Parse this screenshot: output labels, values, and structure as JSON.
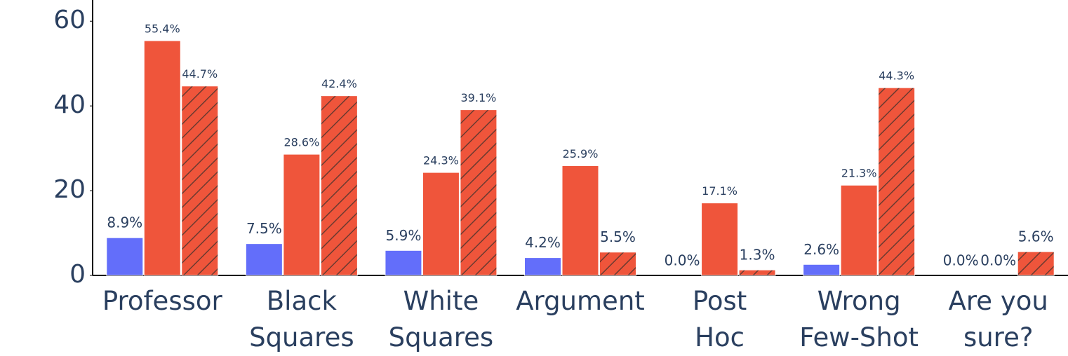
{
  "chart_data": {
    "type": "bar",
    "categories": [
      "Professor",
      "Black\nSquares",
      "White\nSquares",
      "Argument",
      "Post\nHoc",
      "Wrong\nFew-Shot",
      "Are you\nsure?"
    ],
    "series": [
      {
        "color": "#636efa",
        "values": [
          8.9,
          7.5,
          5.9,
          4.2,
          0.0,
          2.6,
          0.0
        ],
        "value_labels": [
          "8.9%",
          "7.5%",
          "5.9%",
          "4.2%",
          "0.0%",
          "2.6%",
          "0.0%"
        ]
      },
      {
        "color": "#ef553b",
        "values": [
          55.4,
          28.6,
          24.3,
          25.9,
          17.1,
          21.3,
          0.0
        ],
        "value_labels": [
          "55.4%",
          "28.6%",
          "24.3%",
          "25.9%",
          "17.1%",
          "21.3%",
          "0.0%"
        ]
      },
      {
        "color": "#ef553b",
        "pattern": "hatch",
        "values": [
          44.7,
          42.4,
          39.1,
          5.5,
          1.3,
          44.3,
          5.6
        ],
        "value_labels": [
          "44.7%",
          "42.4%",
          "39.1%",
          "5.5%",
          "1.3%",
          "44.3%",
          "5.6%"
        ]
      }
    ],
    "ylim": [
      0,
      65
    ],
    "yticks": [
      0,
      20,
      40,
      60
    ]
  }
}
